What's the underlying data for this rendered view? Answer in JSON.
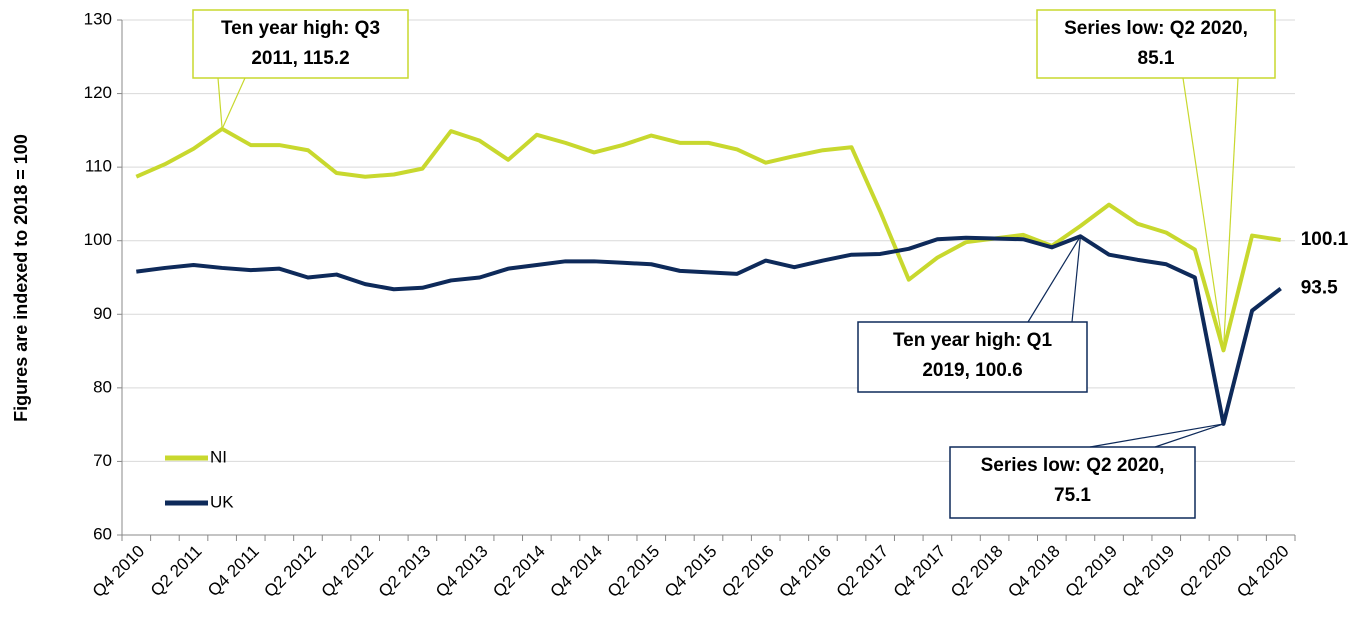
{
  "chart_data": {
    "type": "line",
    "y_axis_label": "Figures are indexed to 2018 = 100",
    "categories": [
      "Q4 2010",
      null,
      "Q2 2011",
      null,
      "Q4 2011",
      null,
      "Q2 2012",
      null,
      "Q4 2012",
      null,
      "Q2 2013",
      null,
      "Q4 2013",
      null,
      "Q2 2014",
      null,
      "Q4 2014",
      null,
      "Q2 2015",
      null,
      "Q4 2015",
      null,
      "Q2 2016",
      null,
      "Q4 2016",
      null,
      "Q2 2017",
      null,
      "Q4 2017",
      null,
      "Q2 2018",
      null,
      "Q4 2018",
      null,
      "Q2 2019",
      null,
      "Q4 2019",
      null,
      "Q2 2020",
      null,
      "Q4 2020"
    ],
    "series": [
      {
        "name": "NI",
        "color": "#c8d82e",
        "values": [
          108.7,
          110.4,
          112.5,
          115.2,
          113.0,
          113.0,
          112.3,
          109.2,
          108.7,
          109.0,
          109.8,
          114.9,
          113.6,
          111.0,
          114.4,
          113.3,
          112.0,
          113.0,
          114.3,
          113.3,
          113.3,
          112.4,
          110.6,
          111.5,
          112.3,
          112.7,
          104.0,
          94.7,
          97.7,
          99.8,
          100.3,
          100.8,
          99.3,
          102.0,
          104.9,
          102.3,
          101.1,
          98.8,
          85.1,
          100.7,
          100.1
        ]
      },
      {
        "name": "UK",
        "color": "#0e2a5a",
        "values": [
          95.8,
          96.3,
          96.7,
          96.3,
          96.0,
          96.2,
          95.0,
          95.4,
          94.1,
          93.4,
          93.6,
          94.6,
          95.0,
          96.2,
          96.7,
          97.2,
          97.2,
          97.0,
          96.8,
          95.9,
          95.7,
          95.5,
          97.3,
          96.4,
          97.3,
          98.1,
          98.2,
          98.9,
          100.2,
          100.4,
          100.3,
          100.2,
          99.1,
          100.6,
          98.1,
          97.4,
          96.8,
          95.0,
          75.1,
          90.5,
          93.5
        ]
      }
    ],
    "annotations": [
      {
        "series": 0,
        "index": 3,
        "lines": [
          "Ten year high: Q3",
          "2011, 115.2"
        ]
      },
      {
        "series": 0,
        "index": 38,
        "lines": [
          "Series low: Q2 2020,",
          "85.1"
        ]
      },
      {
        "series": 1,
        "index": 33,
        "lines": [
          "Ten year high: Q1",
          "2019, 100.6"
        ]
      },
      {
        "series": 1,
        "index": 38,
        "lines": [
          "Series low: Q2 2020,",
          "75.1"
        ]
      }
    ],
    "ylim": [
      60,
      130
    ],
    "yticks": [
      60,
      70,
      80,
      90,
      100,
      110,
      120,
      130
    ],
    "grid": true,
    "legend": "lower left"
  }
}
